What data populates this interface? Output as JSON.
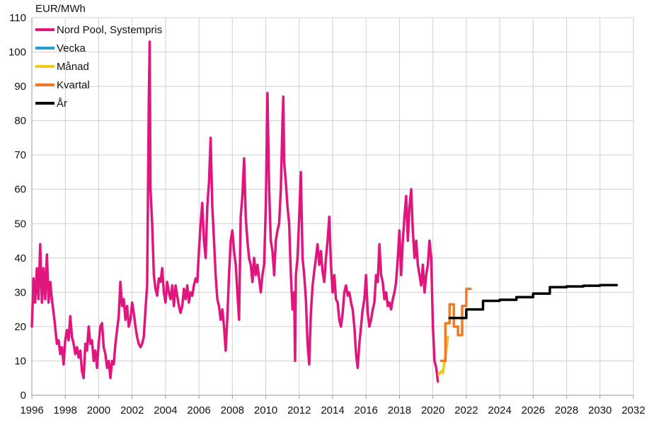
{
  "chart_data": {
    "type": "line",
    "unit_label": "EUR/MWh",
    "xlim": [
      1996,
      2032
    ],
    "ylim": [
      0,
      110
    ],
    "x_ticks": [
      1996,
      1998,
      2000,
      2002,
      2004,
      2006,
      2008,
      2010,
      2012,
      2014,
      2016,
      2018,
      2020,
      2022,
      2024,
      2026,
      2028,
      2030,
      2032
    ],
    "y_ticks": [
      0,
      10,
      20,
      30,
      40,
      50,
      60,
      70,
      80,
      90,
      100,
      110
    ],
    "grid": true,
    "legend_position": "top-left",
    "series": [
      {
        "name": "Nord Pool, Systempris",
        "color": "#e0167e",
        "points": [
          [
            1996.0,
            20
          ],
          [
            1996.1,
            34
          ],
          [
            1996.2,
            27
          ],
          [
            1996.3,
            37
          ],
          [
            1996.4,
            28
          ],
          [
            1996.5,
            44
          ],
          [
            1996.6,
            27
          ],
          [
            1996.7,
            37
          ],
          [
            1996.8,
            28
          ],
          [
            1996.9,
            41
          ],
          [
            1997.0,
            27
          ],
          [
            1997.1,
            33
          ],
          [
            1997.2,
            28
          ],
          [
            1997.35,
            22
          ],
          [
            1997.5,
            15
          ],
          [
            1997.6,
            16
          ],
          [
            1997.7,
            12
          ],
          [
            1997.8,
            14
          ],
          [
            1997.9,
            9
          ],
          [
            1998.0,
            16
          ],
          [
            1998.1,
            19
          ],
          [
            1998.2,
            16
          ],
          [
            1998.3,
            23
          ],
          [
            1998.4,
            17
          ],
          [
            1998.5,
            15
          ],
          [
            1998.6,
            12
          ],
          [
            1998.7,
            14
          ],
          [
            1998.8,
            11
          ],
          [
            1998.9,
            13
          ],
          [
            1999.0,
            7
          ],
          [
            1999.1,
            5
          ],
          [
            1999.2,
            15
          ],
          [
            1999.3,
            13
          ],
          [
            1999.4,
            20
          ],
          [
            1999.5,
            15
          ],
          [
            1999.6,
            16
          ],
          [
            1999.7,
            10
          ],
          [
            1999.8,
            13
          ],
          [
            1999.9,
            8
          ],
          [
            2000.0,
            15
          ],
          [
            2000.1,
            20
          ],
          [
            2000.2,
            21
          ],
          [
            2000.3,
            14
          ],
          [
            2000.4,
            12
          ],
          [
            2000.5,
            8
          ],
          [
            2000.6,
            10
          ],
          [
            2000.7,
            5
          ],
          [
            2000.8,
            10
          ],
          [
            2000.9,
            9
          ],
          [
            2001.0,
            15
          ],
          [
            2001.1,
            19
          ],
          [
            2001.2,
            23
          ],
          [
            2001.3,
            33
          ],
          [
            2001.4,
            26
          ],
          [
            2001.5,
            28
          ],
          [
            2001.6,
            22
          ],
          [
            2001.7,
            26
          ],
          [
            2001.8,
            20
          ],
          [
            2001.9,
            22
          ],
          [
            2002.0,
            27
          ],
          [
            2002.1,
            24
          ],
          [
            2002.2,
            20
          ],
          [
            2002.3,
            17
          ],
          [
            2002.4,
            15
          ],
          [
            2002.5,
            14
          ],
          [
            2002.6,
            15
          ],
          [
            2002.7,
            17
          ],
          [
            2002.8,
            25
          ],
          [
            2002.9,
            32
          ],
          [
            2003.0,
            86
          ],
          [
            2003.05,
            103
          ],
          [
            2003.1,
            60
          ],
          [
            2003.2,
            50
          ],
          [
            2003.3,
            35
          ],
          [
            2003.4,
            31
          ],
          [
            2003.5,
            29
          ],
          [
            2003.6,
            34
          ],
          [
            2003.7,
            33
          ],
          [
            2003.8,
            37
          ],
          [
            2003.9,
            30
          ],
          [
            2004.0,
            27
          ],
          [
            2004.1,
            33
          ],
          [
            2004.2,
            30
          ],
          [
            2004.3,
            28
          ],
          [
            2004.4,
            32
          ],
          [
            2004.5,
            26
          ],
          [
            2004.6,
            32
          ],
          [
            2004.7,
            29
          ],
          [
            2004.8,
            26
          ],
          [
            2004.9,
            24
          ],
          [
            2005.0,
            26
          ],
          [
            2005.1,
            31
          ],
          [
            2005.2,
            28
          ],
          [
            2005.3,
            32
          ],
          [
            2005.4,
            27
          ],
          [
            2005.5,
            30
          ],
          [
            2005.6,
            29
          ],
          [
            2005.7,
            32
          ],
          [
            2005.8,
            34
          ],
          [
            2005.9,
            33
          ],
          [
            2006.0,
            42
          ],
          [
            2006.1,
            50
          ],
          [
            2006.2,
            56
          ],
          [
            2006.3,
            45
          ],
          [
            2006.4,
            40
          ],
          [
            2006.5,
            55
          ],
          [
            2006.6,
            62
          ],
          [
            2006.7,
            75
          ],
          [
            2006.8,
            55
          ],
          [
            2006.9,
            45
          ],
          [
            2007.0,
            35
          ],
          [
            2007.1,
            28
          ],
          [
            2007.2,
            26
          ],
          [
            2007.3,
            22
          ],
          [
            2007.4,
            25
          ],
          [
            2007.5,
            20
          ],
          [
            2007.6,
            13
          ],
          [
            2007.7,
            23
          ],
          [
            2007.8,
            35
          ],
          [
            2007.9,
            45
          ],
          [
            2008.0,
            48
          ],
          [
            2008.1,
            42
          ],
          [
            2008.2,
            38
          ],
          [
            2008.3,
            30
          ],
          [
            2008.4,
            22
          ],
          [
            2008.5,
            52
          ],
          [
            2008.6,
            58
          ],
          [
            2008.7,
            69
          ],
          [
            2008.8,
            52
          ],
          [
            2008.9,
            45
          ],
          [
            2009.0,
            40
          ],
          [
            2009.1,
            38
          ],
          [
            2009.2,
            33
          ],
          [
            2009.3,
            40
          ],
          [
            2009.4,
            35
          ],
          [
            2009.5,
            38
          ],
          [
            2009.6,
            34
          ],
          [
            2009.7,
            30
          ],
          [
            2009.8,
            35
          ],
          [
            2009.9,
            38
          ],
          [
            2010.0,
            55
          ],
          [
            2010.1,
            88
          ],
          [
            2010.2,
            60
          ],
          [
            2010.3,
            45
          ],
          [
            2010.4,
            42
          ],
          [
            2010.5,
            35
          ],
          [
            2010.6,
            45
          ],
          [
            2010.7,
            48
          ],
          [
            2010.8,
            50
          ],
          [
            2010.9,
            60
          ],
          [
            2011.0,
            80
          ],
          [
            2011.05,
            87
          ],
          [
            2011.1,
            68
          ],
          [
            2011.2,
            62
          ],
          [
            2011.3,
            55
          ],
          [
            2011.4,
            50
          ],
          [
            2011.5,
            35
          ],
          [
            2011.6,
            25
          ],
          [
            2011.7,
            30
          ],
          [
            2011.75,
            10
          ],
          [
            2011.8,
            35
          ],
          [
            2011.9,
            40
          ],
          [
            2012.0,
            52
          ],
          [
            2012.1,
            65
          ],
          [
            2012.2,
            40
          ],
          [
            2012.3,
            35
          ],
          [
            2012.4,
            28
          ],
          [
            2012.5,
            15
          ],
          [
            2012.6,
            9
          ],
          [
            2012.7,
            24
          ],
          [
            2012.8,
            32
          ],
          [
            2012.9,
            36
          ],
          [
            2013.0,
            40
          ],
          [
            2013.1,
            44
          ],
          [
            2013.2,
            38
          ],
          [
            2013.3,
            42
          ],
          [
            2013.4,
            36
          ],
          [
            2013.5,
            33
          ],
          [
            2013.6,
            40
          ],
          [
            2013.7,
            45
          ],
          [
            2013.8,
            52
          ],
          [
            2013.9,
            38
          ],
          [
            2014.0,
            30
          ],
          [
            2014.1,
            35
          ],
          [
            2014.2,
            28
          ],
          [
            2014.3,
            27
          ],
          [
            2014.4,
            22
          ],
          [
            2014.5,
            20
          ],
          [
            2014.6,
            24
          ],
          [
            2014.7,
            30
          ],
          [
            2014.8,
            32
          ],
          [
            2014.9,
            29
          ],
          [
            2015.0,
            30
          ],
          [
            2015.1,
            27
          ],
          [
            2015.2,
            25
          ],
          [
            2015.3,
            20
          ],
          [
            2015.4,
            12
          ],
          [
            2015.5,
            8
          ],
          [
            2015.6,
            15
          ],
          [
            2015.7,
            20
          ],
          [
            2015.8,
            25
          ],
          [
            2015.9,
            28
          ],
          [
            2016.0,
            35
          ],
          [
            2016.1,
            24
          ],
          [
            2016.2,
            20
          ],
          [
            2016.3,
            22
          ],
          [
            2016.4,
            25
          ],
          [
            2016.5,
            27
          ],
          [
            2016.6,
            35
          ],
          [
            2016.7,
            33
          ],
          [
            2016.8,
            44
          ],
          [
            2016.9,
            35
          ],
          [
            2017.0,
            33
          ],
          [
            2017.1,
            28
          ],
          [
            2017.2,
            30
          ],
          [
            2017.3,
            26
          ],
          [
            2017.4,
            27
          ],
          [
            2017.5,
            25
          ],
          [
            2017.6,
            28
          ],
          [
            2017.7,
            30
          ],
          [
            2017.8,
            33
          ],
          [
            2017.9,
            40
          ],
          [
            2018.0,
            48
          ],
          [
            2018.1,
            35
          ],
          [
            2018.2,
            45
          ],
          [
            2018.3,
            52
          ],
          [
            2018.4,
            58
          ],
          [
            2018.5,
            45
          ],
          [
            2018.6,
            55
          ],
          [
            2018.7,
            60
          ],
          [
            2018.8,
            48
          ],
          [
            2018.9,
            40
          ],
          [
            2019.0,
            45
          ],
          [
            2019.1,
            38
          ],
          [
            2019.2,
            35
          ],
          [
            2019.3,
            32
          ],
          [
            2019.4,
            38
          ],
          [
            2019.5,
            30
          ],
          [
            2019.6,
            35
          ],
          [
            2019.7,
            38
          ],
          [
            2019.8,
            45
          ],
          [
            2019.9,
            40
          ],
          [
            2020.0,
            20
          ],
          [
            2020.1,
            10
          ],
          [
            2020.2,
            8
          ],
          [
            2020.3,
            4
          ]
        ]
      },
      {
        "name": "Vecka",
        "color": "#1f9fd4",
        "points": []
      },
      {
        "name": "Månad",
        "color": "#f5c518",
        "points": [
          [
            2020.35,
            6
          ],
          [
            2020.5,
            7
          ],
          [
            2020.6,
            6.5
          ],
          [
            2020.7,
            10
          ],
          [
            2020.8,
            13
          ],
          [
            2020.9,
            17
          ]
        ]
      },
      {
        "name": "Kvartal",
        "color": "#f07a28",
        "points": [
          [
            2020.5,
            10
          ],
          [
            2020.75,
            10
          ],
          [
            2020.75,
            21
          ],
          [
            2021.0,
            21
          ],
          [
            2021.0,
            26.5
          ],
          [
            2021.25,
            26.5
          ],
          [
            2021.25,
            20
          ],
          [
            2021.5,
            20
          ],
          [
            2021.5,
            17.5
          ],
          [
            2021.75,
            17.5
          ],
          [
            2021.75,
            26
          ],
          [
            2022.0,
            26
          ],
          [
            2022.0,
            31
          ],
          [
            2022.25,
            31
          ]
        ]
      },
      {
        "name": "År",
        "color": "#000000",
        "points": [
          [
            2021.0,
            22.5
          ],
          [
            2022.0,
            22.5
          ],
          [
            2022.0,
            25
          ],
          [
            2023.0,
            25
          ],
          [
            2023.0,
            27.5
          ],
          [
            2024.0,
            27.5
          ],
          [
            2024.0,
            27.8
          ],
          [
            2025.0,
            27.8
          ],
          [
            2025.0,
            28.6
          ],
          [
            2026.0,
            28.6
          ],
          [
            2026.0,
            29.6
          ],
          [
            2027.0,
            29.6
          ],
          [
            2027.0,
            31.5
          ],
          [
            2028.0,
            31.5
          ],
          [
            2028.0,
            31.7
          ],
          [
            2029.0,
            31.7
          ],
          [
            2029.0,
            31.9
          ],
          [
            2030.0,
            31.9
          ],
          [
            2030.0,
            32.1
          ],
          [
            2031.0,
            32.1
          ]
        ]
      }
    ]
  }
}
